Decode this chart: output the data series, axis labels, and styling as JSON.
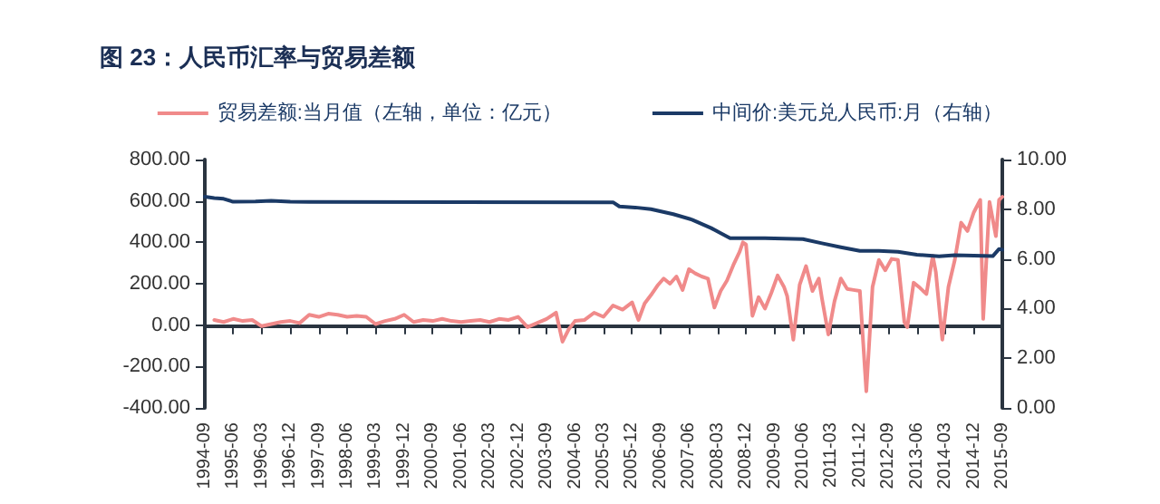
{
  "chart_data": {
    "type": "line",
    "title": "图 23：人民币汇率与贸易差额",
    "xlim": [
      "1994-09",
      "2015-09"
    ],
    "xticks": [
      "1994-09",
      "1995-06",
      "1996-03",
      "1996-12",
      "1997-09",
      "1998-06",
      "1999-03",
      "1999-12",
      "2000-09",
      "2001-06",
      "2002-03",
      "2002-12",
      "2003-09",
      "2004-06",
      "2005-03",
      "2005-12",
      "2006-09",
      "2007-06",
      "2008-03",
      "2008-12",
      "2009-09",
      "2010-06",
      "2011-03",
      "2011-12",
      "2012-09",
      "2013-06",
      "2014-03",
      "2014-12",
      "2015-09"
    ],
    "ylim": [
      -400,
      800
    ],
    "yticks": [
      {
        "value": -400,
        "label": "-400.00"
      },
      {
        "value": -200,
        "label": "-200.00"
      },
      {
        "value": 0,
        "label": "0.00"
      },
      {
        "value": 200,
        "label": "200.00"
      },
      {
        "value": 400,
        "label": "400.00"
      },
      {
        "value": 600,
        "label": "600.00"
      },
      {
        "value": 800,
        "label": "800.00"
      }
    ],
    "y2lim": [
      0,
      10
    ],
    "y2ticks": [
      {
        "value": 0,
        "label": "0.00"
      },
      {
        "value": 2,
        "label": "2.00"
      },
      {
        "value": 4,
        "label": "4.00"
      },
      {
        "value": 6,
        "label": "6.00"
      },
      {
        "value": 8,
        "label": "8.00"
      },
      {
        "value": 10,
        "label": "10.00"
      }
    ],
    "legend": "top",
    "marker": "none",
    "line_style": "solid",
    "series": [
      {
        "name": "贸易差额:当月值（左轴，单位：亿元）",
        "color": "#f08a8a",
        "x": [
          "1994-12",
          "1995-03",
          "1995-06",
          "1995-09",
          "1995-12",
          "1996-03",
          "1996-06",
          "1996-09",
          "1996-12",
          "1997-03",
          "1997-06",
          "1997-09",
          "1997-12",
          "1998-03",
          "1998-06",
          "1998-09",
          "1998-12",
          "1999-03",
          "1999-06",
          "1999-09",
          "1999-12",
          "2000-03",
          "2000-06",
          "2000-09",
          "2000-12",
          "2001-03",
          "2001-06",
          "2001-09",
          "2001-12",
          "2002-03",
          "2002-06",
          "2002-09",
          "2002-12",
          "2003-03",
          "2003-06",
          "2003-09",
          "2003-12",
          "2004-02",
          "2004-04",
          "2004-06",
          "2004-09",
          "2004-12",
          "2005-03",
          "2005-06",
          "2005-09",
          "2005-12",
          "2006-02",
          "2006-04",
          "2006-06",
          "2006-08",
          "2006-10",
          "2006-12",
          "2007-02",
          "2007-04",
          "2007-06",
          "2007-08",
          "2007-10",
          "2007-12",
          "2008-02",
          "2008-04",
          "2008-06",
          "2008-08",
          "2008-10",
          "2008-11",
          "2008-12",
          "2009-02",
          "2009-04",
          "2009-06",
          "2009-08",
          "2009-10",
          "2009-12",
          "2010-01",
          "2010-03",
          "2010-05",
          "2010-07",
          "2010-09",
          "2010-11",
          "2010-12",
          "2011-02",
          "2011-04",
          "2011-06",
          "2011-08",
          "2011-10",
          "2011-12",
          "2012-02",
          "2012-04",
          "2012-06",
          "2012-08",
          "2012-10",
          "2012-12",
          "2013-02",
          "2013-03",
          "2013-05",
          "2013-07",
          "2013-09",
          "2013-11",
          "2013-12",
          "2014-02",
          "2014-04",
          "2014-06",
          "2014-08",
          "2014-10",
          "2014-12",
          "2015-02",
          "2015-03",
          "2015-05",
          "2015-07",
          "2015-08",
          "2015-09"
        ],
        "values": [
          25,
          15,
          30,
          20,
          25,
          -5,
          5,
          15,
          20,
          10,
          50,
          40,
          55,
          50,
          40,
          45,
          40,
          5,
          20,
          30,
          50,
          15,
          25,
          20,
          30,
          20,
          15,
          20,
          25,
          15,
          30,
          25,
          40,
          -10,
          10,
          30,
          60,
          -80,
          -20,
          20,
          25,
          60,
          40,
          95,
          75,
          110,
          25,
          105,
          145,
          190,
          225,
          200,
          235,
          170,
          270,
          250,
          235,
          225,
          85,
          165,
          215,
          290,
          355,
          400,
          390,
          45,
          135,
          80,
          155,
          240,
          185,
          140,
          -70,
          195,
          285,
          165,
          225,
          130,
          -45,
          115,
          225,
          175,
          170,
          165,
          -320,
          185,
          315,
          265,
          320,
          315,
          15,
          -10,
          205,
          180,
          150,
          335,
          255,
          -70,
          185,
          315,
          495,
          455,
          545,
          605,
          30,
          595,
          430,
          605,
          620
        ]
      },
      {
        "name": "中间价:美元兑人民币:月（右轴）",
        "color": "#1b3a66",
        "axis": "y2",
        "x": [
          "1994-09",
          "1994-12",
          "1995-03",
          "1995-06",
          "1996-01",
          "1996-06",
          "1996-12",
          "1997-06",
          "2005-06",
          "2005-08",
          "2006-01",
          "2006-06",
          "2007-01",
          "2007-07",
          "2008-01",
          "2008-07",
          "2009-06",
          "2010-06",
          "2010-12",
          "2011-06",
          "2011-12",
          "2012-06",
          "2012-12",
          "2013-06",
          "2014-01",
          "2014-06",
          "2015-06",
          "2015-08",
          "2015-09"
        ],
        "values": [
          8.5,
          8.45,
          8.42,
          8.3,
          8.31,
          8.34,
          8.3,
          8.29,
          8.28,
          8.11,
          8.07,
          8.0,
          7.8,
          7.58,
          7.24,
          6.83,
          6.83,
          6.8,
          6.63,
          6.47,
          6.32,
          6.32,
          6.29,
          6.17,
          6.1,
          6.15,
          6.11,
          6.4,
          6.37
        ]
      }
    ]
  }
}
